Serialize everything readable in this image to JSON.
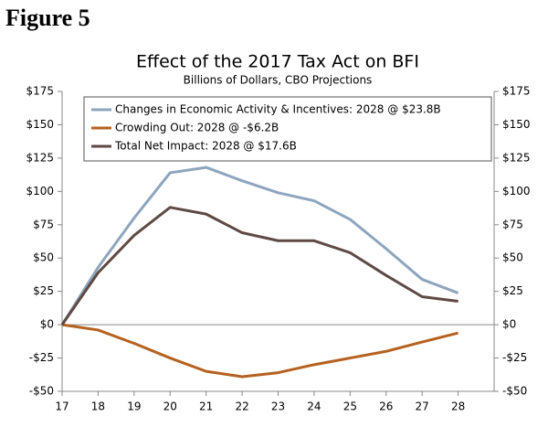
{
  "figure_label": "Figure 5",
  "chart_data": {
    "type": "line",
    "title": "Effect of the 2017 Tax Act on BFI",
    "subtitle": "Billions of Dollars, CBO Projections",
    "x": [
      17,
      18,
      19,
      20,
      21,
      22,
      23,
      24,
      25,
      26,
      27,
      28
    ],
    "xlim": [
      17,
      29
    ],
    "xticks": [
      17,
      18,
      19,
      20,
      21,
      22,
      23,
      24,
      25,
      26,
      27,
      28
    ],
    "ylim": [
      -50,
      175
    ],
    "yticks": [
      {
        "value": -50,
        "label": "-$50"
      },
      {
        "value": -25,
        "label": "-$25"
      },
      {
        "value": 0,
        "label": "$0"
      },
      {
        "value": 25,
        "label": "$25"
      },
      {
        "value": 50,
        "label": "$50"
      },
      {
        "value": 75,
        "label": "$75"
      },
      {
        "value": 100,
        "label": "$100"
      },
      {
        "value": 125,
        "label": "$125"
      },
      {
        "value": 150,
        "label": "$150"
      },
      {
        "value": 175,
        "label": "$175"
      }
    ],
    "legend": "top",
    "series": [
      {
        "name": "Changes in Economic Activity & Incentives: 2028 @ $23.8B",
        "color": "#8da5bd",
        "values": [
          0,
          43,
          80,
          114,
          118,
          108,
          99,
          93,
          79,
          57,
          34,
          23.8
        ]
      },
      {
        "name": "Crowding Out: 2028 @ -$6.2B",
        "color": "#b5611f",
        "values": [
          0,
          -4,
          -14,
          -25,
          -35,
          -39,
          -36,
          -30,
          -25,
          -20,
          -13,
          -6.2
        ]
      },
      {
        "name": "Total Net Impact: 2028 @ $17.6B",
        "color": "#5e4a43",
        "values": [
          0,
          39,
          67,
          88,
          83,
          69,
          63,
          63,
          54,
          37,
          21,
          17.6
        ]
      }
    ]
  }
}
